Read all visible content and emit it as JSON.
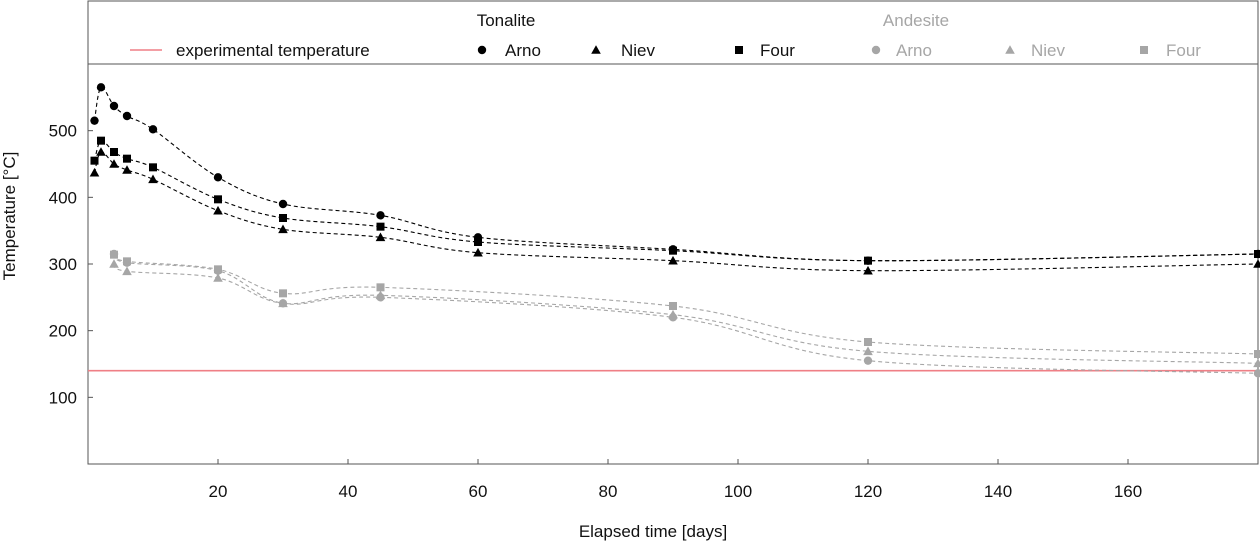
{
  "chart_data": {
    "type": "line",
    "xlabel": "Elapsed time [days]",
    "ylabel": "Temperature [°C]",
    "xlim": [
      0,
      180
    ],
    "ylim": [
      0,
      600
    ],
    "xticks": [
      20,
      40,
      60,
      80,
      100,
      120,
      140,
      160
    ],
    "yticks": [
      100,
      200,
      300,
      400,
      500
    ],
    "grid": false,
    "legend_position": "top",
    "reference_line": {
      "name": "experimental temperature",
      "y": 140,
      "color": "#ef7f86"
    },
    "groups": [
      {
        "name": "Tonalite",
        "color": "#000000"
      },
      {
        "name": "Andesite",
        "color": "#a6a6a6"
      }
    ],
    "series": [
      {
        "name": "Arno",
        "group": "Tonalite",
        "marker": "circle",
        "color": "#000000",
        "x": [
          1,
          2,
          4,
          6,
          10,
          20,
          30,
          45,
          60,
          90,
          120,
          180
        ],
        "y": [
          515,
          565,
          537,
          522,
          502,
          430,
          390,
          373,
          340,
          322,
          305,
          315
        ]
      },
      {
        "name": "Niev",
        "group": "Tonalite",
        "marker": "triangle",
        "color": "#000000",
        "x": [
          1,
          2,
          4,
          6,
          10,
          20,
          30,
          45,
          60,
          90,
          120,
          180
        ],
        "y": [
          437,
          468,
          450,
          441,
          427,
          380,
          352,
          340,
          317,
          305,
          290,
          300
        ]
      },
      {
        "name": "Four",
        "group": "Tonalite",
        "marker": "square",
        "color": "#000000",
        "x": [
          1,
          2,
          4,
          6,
          10,
          20,
          30,
          45,
          60,
          90,
          120,
          180
        ],
        "y": [
          455,
          485,
          468,
          458,
          445,
          397,
          369,
          356,
          333,
          320,
          305,
          315
        ]
      },
      {
        "name": "Arno",
        "group": "Andesite",
        "marker": "circle",
        "color": "#a6a6a6",
        "x": [
          4,
          6,
          20,
          30,
          45,
          90,
          120,
          180
        ],
        "y": [
          315,
          302,
          290,
          241,
          250,
          220,
          155,
          136
        ]
      },
      {
        "name": "Niev",
        "group": "Andesite",
        "marker": "triangle",
        "color": "#a6a6a6",
        "x": [
          4,
          6,
          20,
          30,
          45,
          90,
          120,
          180
        ],
        "y": [
          300,
          289,
          279,
          241,
          253,
          224,
          169,
          151
        ]
      },
      {
        "name": "Four",
        "group": "Andesite",
        "marker": "square",
        "color": "#a6a6a6",
        "x": [
          4,
          6,
          20,
          30,
          45,
          90,
          120,
          180
        ],
        "y": [
          314,
          304,
          292,
          256,
          265,
          237,
          183,
          165
        ]
      }
    ]
  }
}
